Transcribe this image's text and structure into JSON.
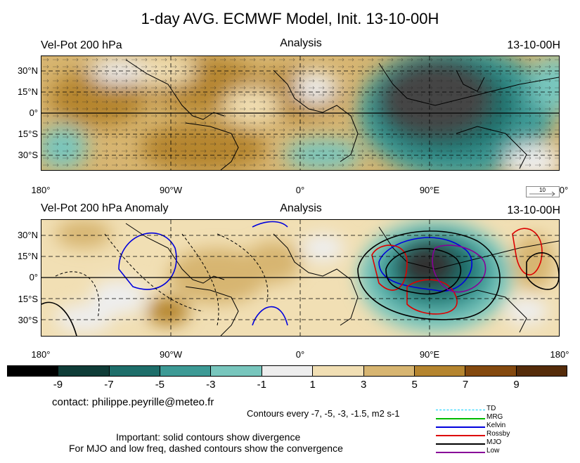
{
  "title": "1-day AVG. ECMWF Model, Init. 13-10-00H",
  "panel_top": {
    "left_label": "Vel-Pot 200 hPa",
    "center_label": "Analysis",
    "right_label": "13-10-00H"
  },
  "panel_bottom": {
    "left_label": "Vel-Pot 200 hPa Anomaly",
    "center_label": "Analysis",
    "right_label": "13-10-00H"
  },
  "lat_labels": [
    "30°N",
    "15°N",
    "0°",
    "15°S",
    "30°S"
  ],
  "lon_labels_top": [
    "180°",
    "90°W",
    "0°",
    "90°E",
    "0°"
  ],
  "lon_labels_bottom": [
    "180°",
    "90°W",
    "0°",
    "90°E",
    "180°"
  ],
  "vector_ref": "10",
  "colorbar": {
    "labels": [
      "-9",
      "-7",
      "-5",
      "-3",
      "-1",
      "1",
      "3",
      "5",
      "7",
      "9"
    ],
    "colors": [
      "#000000",
      "#0f3c37",
      "#1e6e6a",
      "#3d9a95",
      "#78c6bd",
      "#eeeeee",
      "#f1dfb4",
      "#d7b571",
      "#b5852f",
      "#84490f",
      "#552c0a"
    ]
  },
  "contact": "contact: philippe.peyrille@meteo.fr",
  "contours_note": "Contours every  -7, -5, -3, -1.5, m2 s-1",
  "important_note": "Important: solid contours show divergence",
  "mjo_note": "For MJO and low freq, dashed contours show the convergence",
  "legend": [
    {
      "name": "TD",
      "color": "#00ccff",
      "style": "dashed"
    },
    {
      "name": "MRG",
      "color": "#00bb00",
      "style": "solid"
    },
    {
      "name": "Kelvin",
      "color": "#0000dd",
      "style": "solid"
    },
    {
      "name": "Rossby",
      "color": "#dd0000",
      "style": "solid"
    },
    {
      "name": "MJO",
      "color": "#000000",
      "style": "solid"
    },
    {
      "name": "Low",
      "color": "#880099",
      "style": "solid"
    }
  ]
}
